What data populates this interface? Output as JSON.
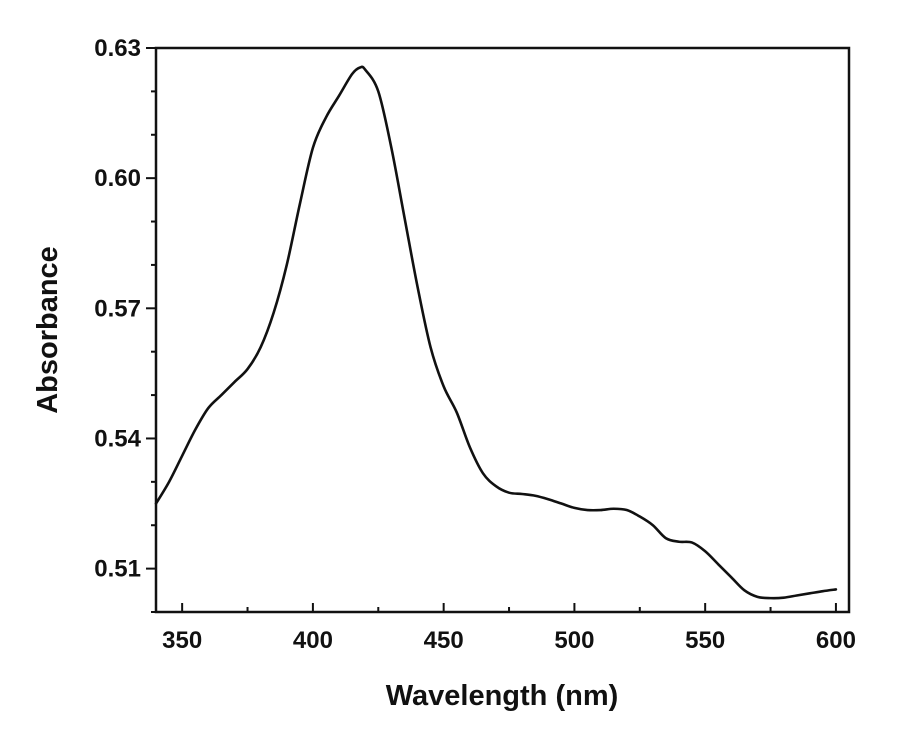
{
  "chart_data": {
    "type": "line",
    "xlabel": "Wavelength (nm)",
    "ylabel": "Absorbance",
    "xlim": [
      340,
      605
    ],
    "ylim": [
      0.5,
      0.63
    ],
    "xticks": [
      350,
      400,
      450,
      500,
      550,
      600
    ],
    "xtick_labels": [
      "350",
      "400",
      "450",
      "500",
      "550",
      "600"
    ],
    "yticks": [
      0.51,
      0.54,
      0.57,
      0.6,
      0.63
    ],
    "ytick_labels": [
      "0.51",
      "0.54",
      "0.57",
      "0.60",
      "0.63"
    ],
    "grid": false,
    "series": [
      {
        "color": "#111111",
        "x": [
          340,
          345,
          350,
          355,
          360,
          365,
          370,
          375,
          380,
          385,
          390,
          395,
          400,
          405,
          410,
          415,
          418,
          420,
          425,
          430,
          435,
          440,
          445,
          450,
          455,
          460,
          465,
          470,
          475,
          480,
          485,
          490,
          495,
          500,
          505,
          510,
          515,
          520,
          525,
          530,
          535,
          540,
          545,
          550,
          555,
          560,
          565,
          570,
          575,
          580,
          585,
          590,
          595,
          600
        ],
        "y": [
          0.525,
          0.53,
          0.536,
          0.542,
          0.547,
          0.55,
          0.553,
          0.556,
          0.561,
          0.569,
          0.58,
          0.594,
          0.607,
          0.614,
          0.619,
          0.624,
          0.6255,
          0.625,
          0.62,
          0.607,
          0.591,
          0.575,
          0.561,
          0.552,
          0.546,
          0.538,
          0.532,
          0.529,
          0.5275,
          0.5272,
          0.5268,
          0.526,
          0.525,
          0.524,
          0.5235,
          0.5235,
          0.5238,
          0.5235,
          0.522,
          0.52,
          0.517,
          0.5162,
          0.516,
          0.514,
          0.511,
          0.508,
          0.505,
          0.5035,
          0.5032,
          0.5033,
          0.5038,
          0.5043,
          0.5048,
          0.5052
        ]
      }
    ]
  }
}
